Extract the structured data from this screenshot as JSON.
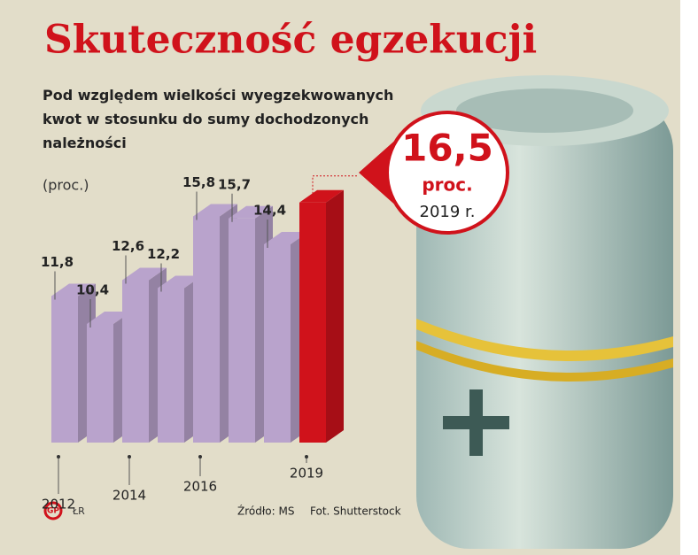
{
  "chart_data": {
    "type": "bar3d",
    "title": "Skuteczność egzekucji",
    "subtitle": "Pod względem wielkości wyegzekwowanych kwot w stosunku do sumy dochodzonych należności",
    "unit": "(proc.)",
    "categories": [
      "2012",
      null,
      "2014",
      null,
      "2016",
      null,
      null,
      "2019"
    ],
    "values": [
      11.8,
      10.4,
      12.6,
      12.2,
      15.8,
      15.7,
      14.4,
      16.5
    ],
    "value_labels": [
      "11,8",
      "10,4",
      "12,6",
      "12,2",
      "15,8",
      "15,7",
      "14,4",
      "16,5"
    ],
    "colors": [
      "#b9a3cc",
      "#b9a3cc",
      "#b9a3cc",
      "#b9a3cc",
      "#b9a3cc",
      "#b9a3cc",
      "#b9a3cc",
      "#d0121b"
    ],
    "callout_unit": "proc.",
    "callout_year": "2019 r.",
    "source": "Źródło: MS",
    "photo": "Fot. Shutterstock",
    "logo": "GP",
    "author": "ŁR"
  }
}
